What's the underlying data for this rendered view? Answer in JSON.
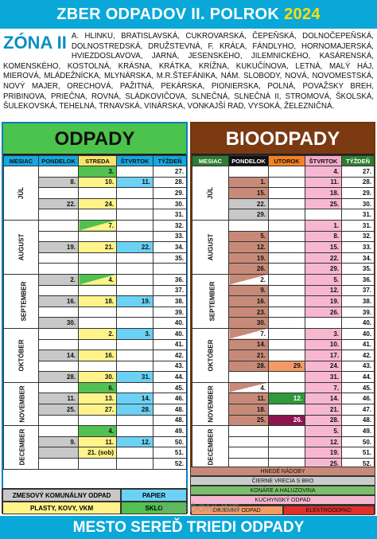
{
  "header": {
    "title": "ZBER ODPADOV II. POLROK",
    "year": "2024"
  },
  "zone": {
    "title": "ZÓNA II",
    "streets": "A. HLINKU, BRATISLAVSKÁ, CUKROVARSKÁ, ČEPEŇSKÁ, DOLNOČEPEŇSKÁ, DOLNOSTREDSKÁ, DRUŽSTEVNÁ, F. KRÁĽA, FÁNDLYHO, HORNOMAJERSKÁ, HVIEZDOSLAVOVA, JARNÁ, JESENSKÉHO, JILEMNICKÉHO, KASÁRENSKÁ, KOMENSKÉHO, KOSTOLNÁ, KRÁSNA, KRÁTKA, KRÍŽNA, KUKUČÍNOVA, LETNÁ, MALÝ HÁJ, MIEROVÁ, MLÁDEŽNÍCKA, MLYNÁRSKA, M.R.ŠTEFÁNIKA, NÁM. SLOBODY, NOVÁ, NOVOMESTSKÁ, NOVÝ MAJER, ORECHOVÁ, PAŽITNÁ, PEKÁRSKA, PIONIERSKA, POLNÁ, POVAŽSKY BREH, PRIBINOVA, PRIEČNA, ROVNÁ, SLÁDKOVIČOVA, SLNEČNÁ, SLNEČNÁ II, STROMOVÁ, ŠKOLSKÁ, ŠULEKOVSKÁ, TEHELNÁ, TRNAVSKÁ, VINÁRSKA, VONKAJŠÍ RAD, VYSOKÁ, ŽELEZNIČNÁ."
  },
  "left": {
    "title": "ODPADY",
    "headers": [
      "MESIAC",
      "PONDELOK",
      "STREDA",
      "ŠTVRTOK",
      "TÝŽDEŇ"
    ],
    "months": [
      "JÚL",
      "AUGUST",
      "SEPTEMBER",
      "OKTÓBER",
      "NOVEMBER",
      "DECEMBER"
    ],
    "legend": {
      "mixed": "ZMESOVÝ KOMUNÁLNY ODPAD",
      "paper": "PAPIER",
      "plastic": "PLASTY, KOVY, VKM",
      "glass": "SKLO"
    }
  },
  "right": {
    "title": "BIOODPADY",
    "headers": [
      "MESIAC",
      "PONDELOK",
      "UTOROK",
      "ŠTVRTOK",
      "TÝŽDEŇ"
    ],
    "months": [
      "JÚL",
      "AUGUST",
      "SEPTEMBER",
      "OKTÓBER",
      "NOVEMBER",
      "DECEMBER"
    ],
    "legend": {
      "brown": "HNEDÉ NÁDOBY",
      "bags": "ČIERNE VRECIA S BRO",
      "containers": "KONÁRE A HALUZOVINA",
      "kitchen": "KUCHYNSKÝ ODPAD",
      "bulky": "OBJEMNÝ ODPAD",
      "electro": "ELEKTROODPAD"
    }
  },
  "footer": {
    "title": "MESTO SEREĎ TRIEDI ODPADY"
  },
  "watermark": "SEREĎONLINE"
}
